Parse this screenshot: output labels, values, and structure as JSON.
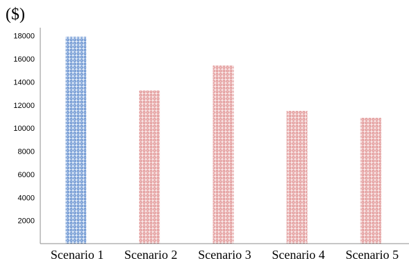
{
  "chart_data": {
    "type": "bar",
    "unit_label": "($)",
    "categories": [
      "Scenario 1",
      "Scenario 2",
      "Scenario 3",
      "Scenario 4",
      "Scenario 5"
    ],
    "values": [
      17900,
      13250,
      15450,
      11500,
      10900
    ],
    "bar_colors": [
      "#4a7fc9",
      "#e08a8a",
      "#e08a8a",
      "#e08a8a",
      "#e08a8a"
    ],
    "yticks": [
      2000,
      4000,
      6000,
      8000,
      10000,
      12000,
      14000,
      16000,
      18000
    ],
    "ylim": [
      0,
      19000
    ],
    "grid": false,
    "title": "",
    "xlabel": "",
    "ylabel": ""
  }
}
